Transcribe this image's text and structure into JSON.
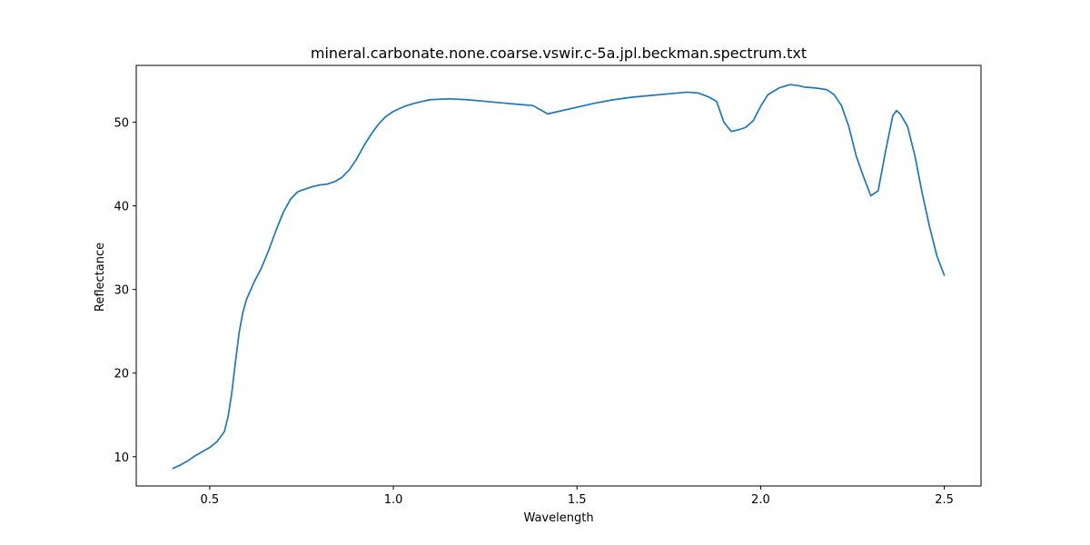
{
  "chart_data": {
    "type": "line",
    "title": "mineral.carbonate.none.coarse.vswir.c-5a.jpl.beckman.spectrum.txt",
    "xlabel": "Wavelength",
    "ylabel": "Reflectance",
    "xlim": [
      0.3,
      2.6
    ],
    "ylim": [
      6.5,
      56.8
    ],
    "xticks": [
      0.5,
      1.0,
      1.5,
      2.0,
      2.5
    ],
    "xtick_labels": [
      "0.5",
      "1.0",
      "1.5",
      "2.0",
      "2.5"
    ],
    "yticks": [
      10,
      20,
      30,
      40,
      50
    ],
    "ytick_labels": [
      "10",
      "20",
      "30",
      "40",
      "50"
    ],
    "grid": false,
    "line_color": "#1f77b4",
    "series": [
      {
        "x": [
          0.4,
          0.42,
          0.44,
          0.46,
          0.48,
          0.5,
          0.52,
          0.54,
          0.55,
          0.56,
          0.57,
          0.58,
          0.59,
          0.6,
          0.62,
          0.64,
          0.66,
          0.68,
          0.7,
          0.72,
          0.74,
          0.76,
          0.78,
          0.8,
          0.82,
          0.84,
          0.86,
          0.88,
          0.9,
          0.92,
          0.94,
          0.96,
          0.98,
          1.0,
          1.03,
          1.06,
          1.1,
          1.15,
          1.2,
          1.25,
          1.3,
          1.35,
          1.38,
          1.4,
          1.42,
          1.45,
          1.5,
          1.55,
          1.6,
          1.65,
          1.7,
          1.75,
          1.8,
          1.83,
          1.86,
          1.88,
          1.9,
          1.92,
          1.94,
          1.96,
          1.98,
          2.0,
          2.02,
          2.05,
          2.08,
          2.1,
          2.12,
          2.15,
          2.18,
          2.2,
          2.22,
          2.24,
          2.26,
          2.28,
          2.3,
          2.32,
          2.34,
          2.36,
          2.37,
          2.38,
          2.4,
          2.42,
          2.44,
          2.46,
          2.48,
          2.5
        ],
        "y": [
          8.6,
          9.0,
          9.5,
          10.1,
          10.6,
          11.1,
          11.8,
          13.0,
          14.8,
          17.6,
          21.3,
          24.8,
          27.2,
          28.8,
          30.8,
          32.5,
          34.6,
          37.0,
          39.2,
          40.8,
          41.7,
          42.0,
          42.3,
          42.5,
          42.6,
          42.9,
          43.4,
          44.3,
          45.6,
          47.2,
          48.6,
          49.8,
          50.7,
          51.3,
          51.9,
          52.3,
          52.7,
          52.8,
          52.7,
          52.5,
          52.3,
          52.1,
          52.0,
          51.5,
          51.0,
          51.3,
          51.8,
          52.3,
          52.7,
          53.0,
          53.2,
          53.4,
          53.6,
          53.5,
          53.0,
          52.5,
          50.0,
          48.9,
          49.1,
          49.4,
          50.2,
          51.9,
          53.3,
          54.1,
          54.5,
          54.4,
          54.2,
          54.1,
          53.9,
          53.3,
          52.0,
          49.5,
          46.0,
          43.5,
          41.2,
          41.8,
          46.5,
          50.8,
          51.4,
          51.0,
          49.5,
          46.0,
          41.5,
          37.5,
          34.0,
          31.7
        ]
      }
    ]
  }
}
